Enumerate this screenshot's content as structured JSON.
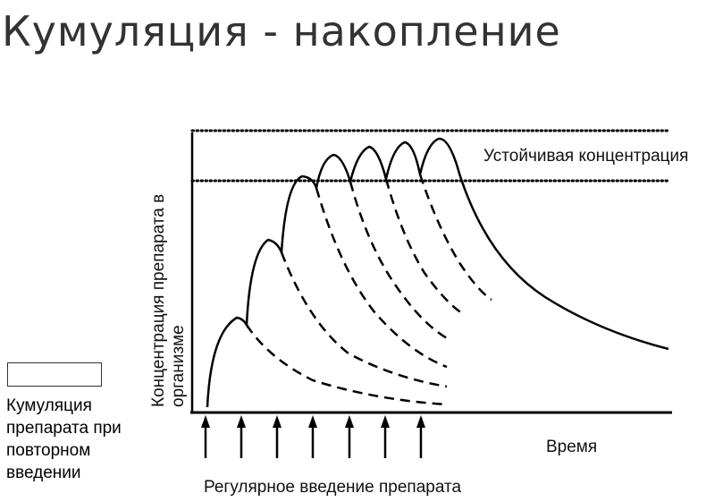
{
  "title": "Кумуляция - накопление",
  "caption": {
    "lines": [
      "Кумуляция",
      "препарата при",
      "повторном",
      "введении"
    ]
  },
  "diagram": {
    "y_axis_label_line1": "Концентрация препарата в",
    "y_axis_label_line2": "организме",
    "x_axis_label": "Время",
    "steady_state_label": "Устойчивая концентрация",
    "dosing_label": "Регулярное введение препарата",
    "dose_count": 7
  }
}
